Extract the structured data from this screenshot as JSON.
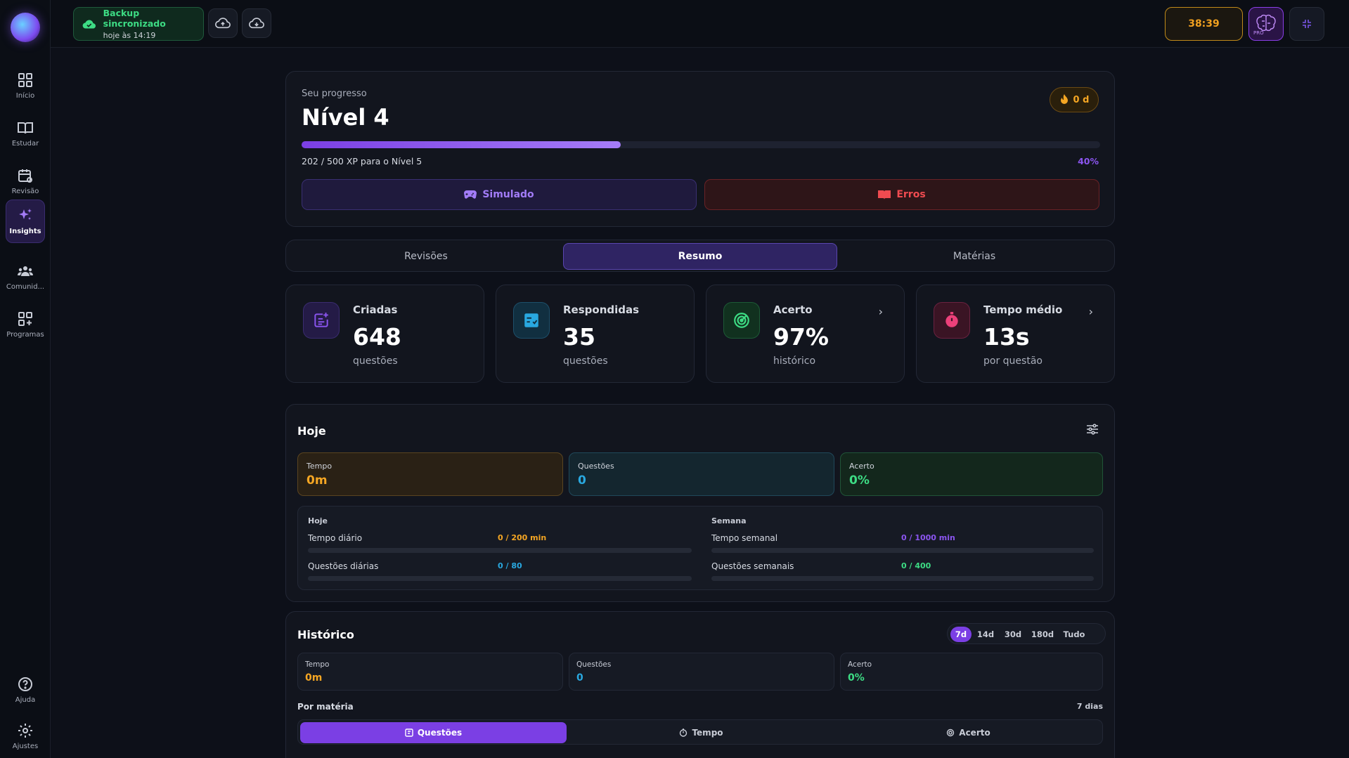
{
  "sidebar": {
    "items": [
      {
        "label": "Início"
      },
      {
        "label": "Estudar"
      },
      {
        "label": "Revisão"
      },
      {
        "label": "Insights"
      },
      {
        "label": "Comunid..."
      },
      {
        "label": "Programas"
      }
    ],
    "bottom": [
      {
        "label": "Ajuda"
      },
      {
        "label": "Ajustes"
      }
    ]
  },
  "topbar": {
    "backup_title": "Backup sincronizado",
    "backup_time": "hoje às 14:19",
    "timer": "38:39",
    "pro_badge": "PRO"
  },
  "progress": {
    "subtitle": "Seu progresso",
    "level": "Nível 4",
    "xp_text": "202 / 500 XP para o Nível 5",
    "percent_label": "40%",
    "percent": 40,
    "streak": "0 d",
    "simulado_label": "Simulado",
    "erros_label": "Erros"
  },
  "tabs": [
    {
      "label": "Revisões"
    },
    {
      "label": "Resumo"
    },
    {
      "label": "Matérias"
    }
  ],
  "stats": [
    {
      "title": "Criadas",
      "value": "648",
      "sub": "questões"
    },
    {
      "title": "Respondidas",
      "value": "35",
      "sub": "questões"
    },
    {
      "title": "Acerto",
      "value": "97%",
      "sub": "histórico"
    },
    {
      "title": "Tempo médio",
      "value": "13s",
      "sub": "por questão"
    }
  ],
  "today": {
    "title": "Hoje",
    "cards": [
      {
        "k": "Tempo",
        "v": "0m"
      },
      {
        "k": "Questões",
        "v": "0"
      },
      {
        "k": "Acerto",
        "v": "0%"
      }
    ],
    "goals": {
      "day_header": "Hoje",
      "week_header": "Semana",
      "daily_time_label": "Tempo diário",
      "daily_time_value": "0 / 200 min",
      "daily_q_label": "Questões diárias",
      "daily_q_value": "0 / 80",
      "weekly_time_label": "Tempo semanal",
      "weekly_time_value": "0 / 1000 min",
      "weekly_q_label": "Questões semanais",
      "weekly_q_value": "0 / 400"
    }
  },
  "history": {
    "title": "Histórico",
    "ranges": [
      "7d",
      "14d",
      "30d",
      "180d",
      "Tudo"
    ],
    "selected_range": "7d",
    "cards": [
      {
        "k": "Tempo",
        "v": "0m"
      },
      {
        "k": "Questões",
        "v": "0"
      },
      {
        "k": "Acerto",
        "v": "0%"
      }
    ],
    "by_subject": "Por matéria",
    "days_label": "7 dias",
    "segments": [
      {
        "label": "Questões"
      },
      {
        "label": "Tempo"
      },
      {
        "label": "Acerto"
      }
    ]
  },
  "colors": {
    "accent": "#7b3fe4",
    "orange": "#f5a623",
    "cyan": "#29a8e0",
    "green": "#3ddc84",
    "red": "#e0484c"
  }
}
